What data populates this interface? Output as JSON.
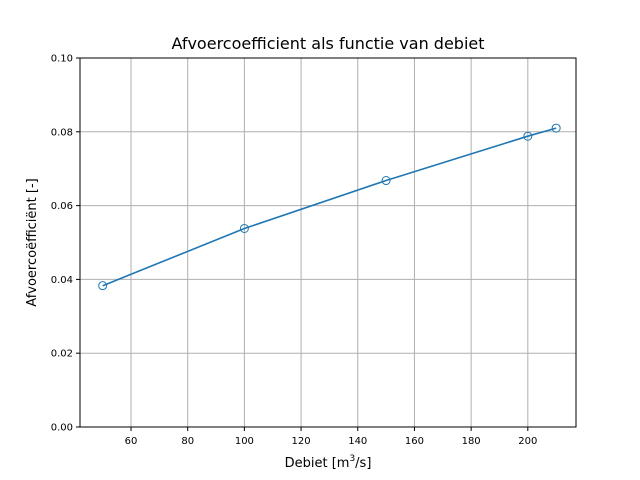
{
  "chart_data": {
    "type": "line",
    "title": "Afvoercoefficient als functie van debiet",
    "xlabel": "Debiet [m",
    "xlabel_sup": "3",
    "xlabel_tail": "/s]",
    "ylabel": "Afvoercoëfficiënt [-]",
    "xlim": [
      42,
      217
    ],
    "ylim": [
      0.0,
      0.1
    ],
    "xticks": [
      60,
      80,
      100,
      120,
      140,
      160,
      180,
      200
    ],
    "xtick_labels": [
      "60",
      "80",
      "100",
      "120",
      "140",
      "160",
      "180",
      "200"
    ],
    "yticks": [
      0.0,
      0.02,
      0.04,
      0.06,
      0.08,
      0.1
    ],
    "ytick_labels": [
      "0.00",
      "0.02",
      "0.04",
      "0.06",
      "0.08",
      "0.10"
    ],
    "grid": true,
    "marker": "hollow-circle",
    "series": [
      {
        "x": [
          50,
          100,
          150,
          200,
          210
        ],
        "y": [
          0.0383,
          0.0538,
          0.0668,
          0.0788,
          0.081
        ]
      }
    ],
    "colors": {
      "line": "#1f77b4",
      "grid": "#b0b0b0",
      "axes": "#000000"
    }
  }
}
